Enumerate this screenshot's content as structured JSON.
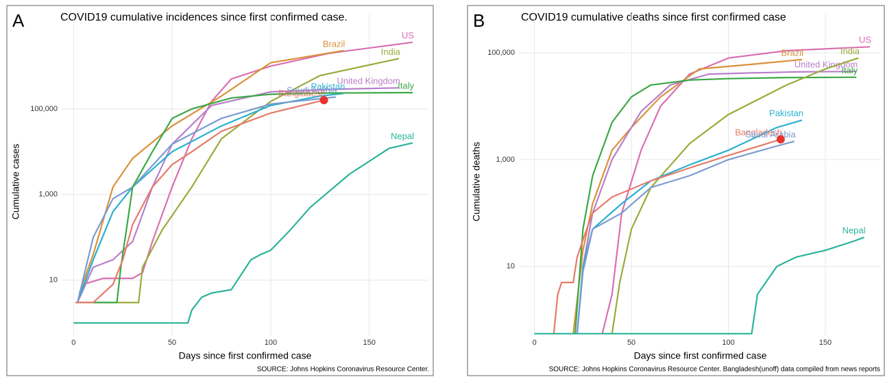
{
  "chart_data": [
    {
      "type": "line",
      "panel": "A",
      "title": "COVID19 cumulative incidences since first confirmed case.",
      "xlabel": "Days since first confirmed case",
      "ylabel": "Cumulative cases",
      "source": "SOURCE: Johns Hopkins Coronavirus Resource Center.",
      "log_y": true,
      "grid": true,
      "xlim": [
        -6,
        180
      ],
      "xticks": [
        0,
        50,
        100,
        150
      ],
      "ylim": [
        0.5,
        8000000
      ],
      "yticks": [
        10,
        {
          "value": 1000,
          "label": "1,000"
        },
        {
          "value": 100000,
          "label": "100,000"
        }
      ],
      "series": [
        {
          "name": "US",
          "color": "#d96fb1",
          "x": [
            2,
            5,
            15,
            30,
            35,
            40,
            50,
            60,
            70,
            80,
            100,
            130,
            172
          ],
          "values": [
            3,
            8,
            11,
            11,
            15,
            80,
            1500,
            20000,
            150000,
            500000,
            1000000,
            2000000,
            3600000
          ]
        },
        {
          "name": "Brazil",
          "color": "#d9913a",
          "x": [
            3,
            10,
            20,
            30,
            50,
            75,
            100,
            137
          ],
          "values": [
            5,
            40,
            1500,
            7000,
            40000,
            200000,
            1200000,
            2300000
          ]
        },
        {
          "name": "India",
          "color": "#9aaa3a",
          "x": [
            2,
            33,
            35,
            45,
            60,
            75,
            100,
            125,
            165
          ],
          "values": [
            3,
            3,
            20,
            150,
            1500,
            20000,
            150000,
            600000,
            1500000
          ]
        },
        {
          "name": "United Kingdom",
          "color": "#b87fc9",
          "x": [
            2,
            10,
            20,
            30,
            40,
            50,
            70,
            100,
            135,
            165
          ],
          "values": [
            3,
            20,
            30,
            80,
            1500,
            15000,
            120000,
            250000,
            290000,
            310000
          ]
        },
        {
          "name": "Pakistan",
          "color": "#2ab0cf",
          "x": [
            3,
            10,
            20,
            30,
            50,
            75,
            100,
            125,
            137
          ],
          "values": [
            4,
            30,
            400,
            1500,
            10000,
            40000,
            120000,
            200000,
            230000
          ]
        },
        {
          "name": "Saudi Arabia",
          "color": "#7a9bd1",
          "x": [
            2,
            10,
            20,
            30,
            50,
            75,
            100,
            133
          ],
          "values": [
            3,
            100,
            800,
            1500,
            15000,
            60000,
            130000,
            190000
          ]
        },
        {
          "name": "Italy",
          "color": "#3aa845",
          "x": [
            1,
            22,
            24,
            30,
            40,
            50,
            60,
            80,
            100,
            130,
            172
          ],
          "values": [
            3,
            3,
            20,
            1500,
            10000,
            60000,
            100000,
            180000,
            220000,
            235000,
            240000
          ]
        },
        {
          "name": "Bangladesh",
          "color": "#e57a6a",
          "x": [
            1,
            10,
            20,
            25,
            30,
            40,
            50,
            60,
            75,
            100,
            127
          ],
          "values": [
            3,
            3,
            8,
            30,
            200,
            1500,
            5000,
            10000,
            30000,
            80000,
            160000
          ]
        },
        {
          "name": "Nepal",
          "color": "#2bb39a",
          "x": [
            0,
            58,
            60,
            65,
            70,
            80,
            90,
            95,
            100,
            110,
            120,
            140,
            160,
            172
          ],
          "values": [
            1,
            1,
            2,
            4,
            5,
            6,
            30,
            40,
            50,
            150,
            500,
            3000,
            12000,
            16000
          ]
        }
      ],
      "highlight": {
        "x": 127,
        "value": 160000,
        "color": "#e8332e"
      }
    },
    {
      "type": "line",
      "panel": "B",
      "title": "COVID19 cumulative deaths since first confirmed case",
      "xlabel": "Days since first confirmed case",
      "ylabel": "Cumulative deaths",
      "source": "SOURCE: Johns Hopkins Coronavirus Resource Center. Bangladesh(unoff) data compiled from news reports",
      "log_y": true,
      "grid": true,
      "xlim": [
        -8,
        179
      ],
      "xticks": [
        0,
        50,
        100,
        150
      ],
      "ylim": [
        0.5,
        300000
      ],
      "yticks": [
        10,
        {
          "value": 1000,
          "label": "1,000"
        },
        {
          "value": 100000,
          "label": "100,000"
        }
      ],
      "series": [
        {
          "name": "US",
          "color": "#d96fb1",
          "x": [
            35,
            40,
            45,
            55,
            65,
            80,
            100,
            130,
            173
          ],
          "values": [
            0.55,
            3,
            100,
            1500,
            10000,
            40000,
            80000,
            110000,
            130000
          ]
        },
        {
          "name": "Brazil",
          "color": "#d9913a",
          "x": [
            20,
            25,
            30,
            40,
            50,
            65,
            85,
            110,
            138
          ],
          "values": [
            0.55,
            20,
            150,
            1500,
            4000,
            15000,
            50000,
            60000,
            75000
          ]
        },
        {
          "name": "United Kingdom",
          "color": "#b87fc9",
          "x": [
            22,
            25,
            30,
            40,
            55,
            70,
            90,
            110,
            135,
            166
          ],
          "values": [
            0.55,
            10,
            100,
            1000,
            8000,
            25000,
            40000,
            42000,
            44000,
            45000
          ]
        },
        {
          "name": "Italy",
          "color": "#3aa845",
          "x": [
            21,
            25,
            30,
            40,
            50,
            60,
            80,
            100,
            130,
            166
          ],
          "values": [
            0.55,
            50,
            500,
            5000,
            15000,
            25000,
            31000,
            33000,
            34500,
            35000
          ]
        },
        {
          "name": "India",
          "color": "#9aaa3a",
          "x": [
            40,
            44,
            50,
            60,
            80,
            100,
            130,
            150,
            167
          ],
          "values": [
            0.55,
            5,
            50,
            300,
            2000,
            7000,
            25000,
            50000,
            80000
          ]
        },
        {
          "name": "Pakistan",
          "color": "#2ab0cf",
          "x": [
            22,
            25,
            30,
            45,
            60,
            80,
            100,
            125,
            138
          ],
          "values": [
            0.55,
            10,
            50,
            150,
            400,
            800,
            1500,
            4000,
            5500
          ]
        },
        {
          "name": "Bangladesh",
          "color": "#e57a6a",
          "x": [
            10,
            12,
            14,
            18,
            20,
            22,
            26,
            30,
            40,
            60,
            80,
            100,
            127
          ],
          "values": [
            0.55,
            3,
            5,
            5,
            5,
            15,
            40,
            100,
            200,
            400,
            700,
            1200,
            2400
          ]
        },
        {
          "name": "Saudi Arabia",
          "color": "#7a9bd1",
          "x": [
            22,
            25,
            30,
            45,
            60,
            80,
            100,
            125,
            134
          ],
          "values": [
            0.55,
            8,
            50,
            100,
            300,
            500,
            1000,
            1800,
            2200
          ]
        },
        {
          "name": "Nepal",
          "color": "#2bb39a",
          "x": [
            0,
            112,
            115,
            125,
            135,
            150,
            165,
            170
          ],
          "values": [
            0.55,
            0.55,
            3,
            10,
            15,
            20,
            30,
            35
          ]
        }
      ],
      "highlight": {
        "x": 127,
        "value": 2400,
        "color": "#e8332e"
      }
    }
  ]
}
